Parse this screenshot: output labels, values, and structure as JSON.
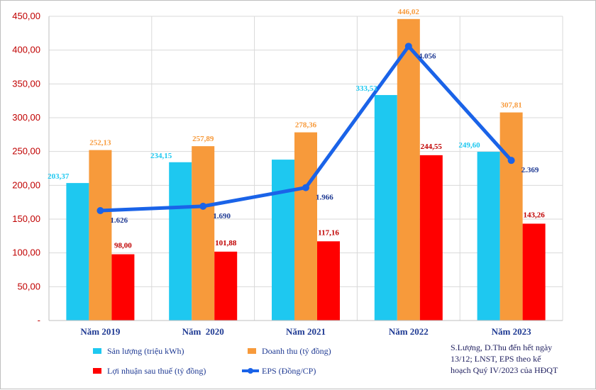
{
  "chart_data": {
    "type": "bar",
    "categories": [
      "Năm 2019",
      "Năm  2020",
      "Năm 2021",
      "Năm 2022",
      "Năm 2023"
    ],
    "ylim": [
      0,
      450
    ],
    "ytick_labels": [
      "-",
      "50,00",
      "100,00",
      "150,00",
      "200,00",
      "250,00",
      "300,00",
      "350,00",
      "400,00",
      "450,00"
    ],
    "series": [
      {
        "name": "Sản lượng (triệu kWh)",
        "color": "#1ec8f0",
        "label_color": "#1ec8f0",
        "values": [
          203.37,
          234.15,
          238.0,
          333.53,
          249.6
        ],
        "labels": [
          "203,37",
          "234,15",
          "",
          "333,53",
          "249,60"
        ]
      },
      {
        "name": "Doanh thu (tỷ đồng)",
        "color": "#f79a3b",
        "label_color": "#f79a3b",
        "values": [
          252.13,
          257.89,
          278.36,
          446.02,
          307.81
        ],
        "labels": [
          "252,13",
          "257,89",
          "278,36",
          "446,02",
          "307,81"
        ]
      },
      {
        "name": "Lợi nhuận sau thuế (tỷ đồng)",
        "color": "#ff0000",
        "label_color": "#c00000",
        "values": [
          98.0,
          101.88,
          117.16,
          244.55,
          143.26
        ],
        "labels": [
          "98,00",
          "101,88",
          "117,16",
          "244,55",
          "143,26"
        ]
      }
    ],
    "line_series": {
      "name": "EPS (Đồng/CP)",
      "color": "#1a63e8",
      "values": [
        1626,
        1690,
        1966,
        4056,
        2369
      ],
      "labels": [
        "1.626",
        "1.690",
        "1.966",
        "4.056",
        "2.369"
      ],
      "plotted_on_left_axis_scale": [
        162.6,
        169.0,
        196.6,
        405.6,
        236.9
      ]
    },
    "note": [
      "S.Lượng, D.Thu đến hết ngày",
      "13/12; LNST, EPS theo kế",
      "hoạch Quý IV/2023 của HĐQT"
    ]
  }
}
